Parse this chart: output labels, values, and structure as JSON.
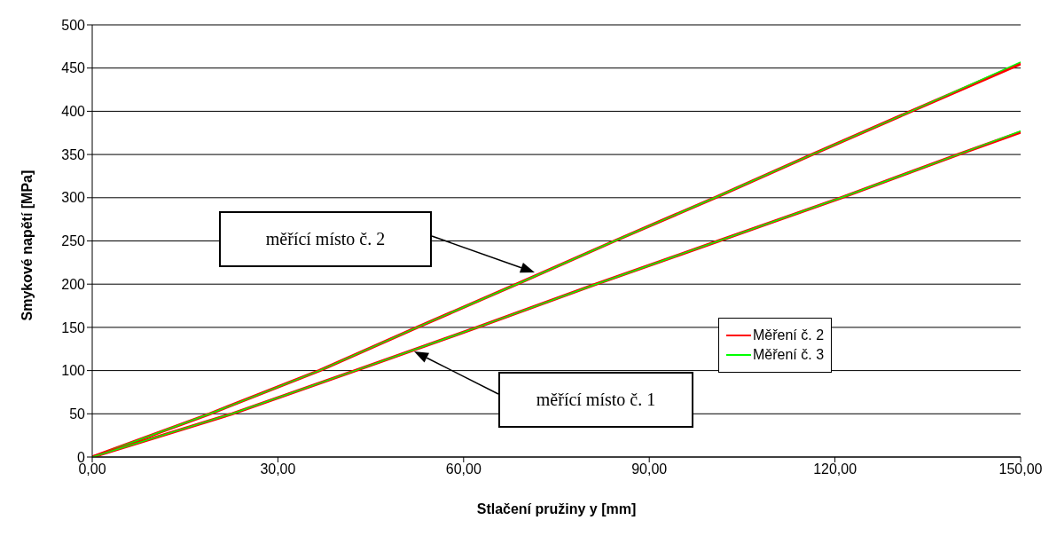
{
  "chart_data": {
    "type": "line",
    "xlabel": "Stlačení pružiny y [mm]",
    "ylabel": "Smykové napětí [MPa]",
    "xlim": [
      0,
      150
    ],
    "xticks": [
      {
        "value": 0,
        "label": "0,00"
      },
      {
        "value": 30,
        "label": "30,00"
      },
      {
        "value": 60,
        "label": "60,00"
      },
      {
        "value": 90,
        "label": "90,00"
      },
      {
        "value": 120,
        "label": "120,00"
      },
      {
        "value": 150,
        "label": "150,00"
      }
    ],
    "ylim": [
      0,
      500
    ],
    "yticks": [
      0,
      50,
      100,
      150,
      200,
      250,
      300,
      350,
      400,
      450,
      500
    ],
    "grid": "y",
    "legend": "right",
    "marker": "none",
    "line_style": "solid",
    "series": [
      {
        "name": "Měření č. 2",
        "color": "#ff0000",
        "x": [
          0,
          19,
          36.7,
          52.5,
          68.6,
          84.4,
          100.6,
          116.3,
          132.3,
          150
        ],
        "values": [
          0,
          50,
          100,
          150,
          200,
          250,
          300,
          350,
          400,
          455
        ]
      },
      {
        "name": "Měření č. 3",
        "color": "#00ff00",
        "x": [
          0,
          19,
          36.7,
          52.5,
          68.6,
          84.4,
          100.6,
          116.3,
          132.3,
          150
        ],
        "values": [
          0,
          50,
          100,
          150,
          200,
          250,
          300,
          350,
          400,
          457
        ]
      },
      {
        "color": "#ff0000",
        "x": [
          0,
          22.6,
          42.5,
          62.2,
          81.4,
          101.2,
          121,
          139.9,
          150
        ],
        "values": [
          0,
          50,
          100,
          150,
          200,
          250,
          300,
          350,
          376
        ]
      },
      {
        "color": "#00ff00",
        "x": [
          0,
          22.6,
          42.5,
          62.2,
          81.4,
          101.2,
          121,
          139.9,
          150
        ],
        "values": [
          0,
          50,
          100,
          150,
          200,
          250,
          300,
          350,
          377
        ]
      }
    ],
    "annotations": [
      "měřící místo č. 2",
      "měřící místo č. 1"
    ]
  }
}
